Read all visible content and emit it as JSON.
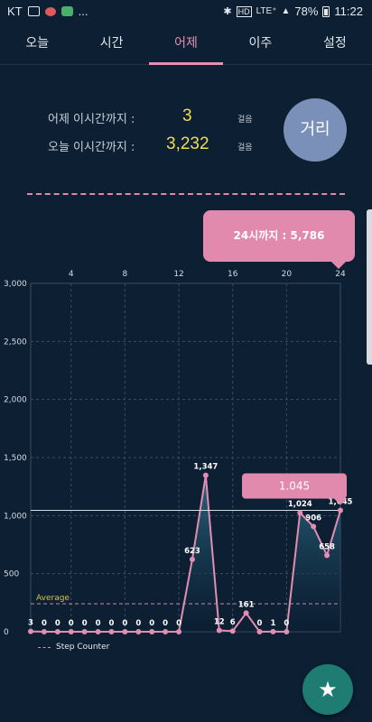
{
  "status_bar": {
    "carrier": "KT",
    "more": "...",
    "network": "LTE⁺",
    "hd": "HD",
    "battery": "78%",
    "time": "11:22"
  },
  "tabs": [
    {
      "label": "오늘"
    },
    {
      "label": "시간"
    },
    {
      "label": "어제"
    },
    {
      "label": "이주"
    },
    {
      "label": "설정"
    }
  ],
  "active_tab": "어제",
  "stats": {
    "yesterday_label": "어제 이시간까지 :",
    "yesterday_value": "3",
    "today_label": "오늘 이시간까지 :",
    "today_value": "3,232",
    "unit": "걸음",
    "distance_button": "거리"
  },
  "total_bubble": "24시까지 : 5,786",
  "colors": {
    "accent": "#e58fb3",
    "value": "#f2dc54",
    "fab": "#1e7c72",
    "background": "#0c1f33"
  },
  "chart_data": {
    "type": "area",
    "x": [
      1,
      2,
      3,
      4,
      5,
      6,
      7,
      8,
      9,
      10,
      11,
      12,
      13,
      14,
      15,
      16,
      17,
      18,
      19,
      20,
      21,
      22,
      23,
      24
    ],
    "values": [
      3,
      0,
      0,
      0,
      0,
      0,
      0,
      0,
      0,
      0,
      0,
      0,
      623,
      1347,
      12,
      6,
      161,
      0,
      1,
      0,
      1024,
      906,
      658,
      1045
    ],
    "point_labels": [
      "3",
      "0",
      "0",
      "0",
      "0",
      "0",
      "0",
      "0",
      "0",
      "0",
      "0",
      "0",
      "623",
      "1,347",
      "12",
      "6",
      "161",
      "0",
      "1",
      "0",
      "1,024",
      "906",
      "658",
      "1,045"
    ],
    "x_ticks": [
      "4",
      "8",
      "12",
      "16",
      "20",
      "24"
    ],
    "y_ticks": [
      "0",
      "500",
      "1,000",
      "1,500",
      "2,000",
      "2,500",
      "3,000"
    ],
    "ylim": [
      0,
      3000
    ],
    "average": 241,
    "average_label": "Average",
    "highlight_label": "1.045",
    "legend": "Step Counter",
    "grid": true
  },
  "fab_icon": "star-icon"
}
